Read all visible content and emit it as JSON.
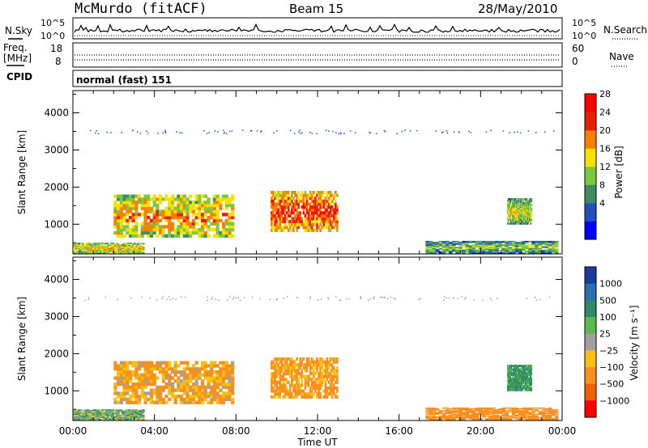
{
  "header": {
    "station": "McMurdo (fitACF)",
    "beam": "Beam 15",
    "date": "28/May/2010"
  },
  "noise_panel": {
    "left_label": "N.Sky",
    "right_label": "N.Search",
    "left_ticks": [
      "10^5",
      "10^0"
    ],
    "right_ticks": [
      "10^5",
      "10^0"
    ]
  },
  "freq_panel": {
    "left_label_1": "Freq.",
    "left_label_2": "[MHz]",
    "right_label": "Nave",
    "left_ticks": [
      "18",
      "8"
    ],
    "right_ticks": [
      "60",
      "0"
    ]
  },
  "cpid_panel": {
    "label": "CPID",
    "value": "normal (fast) 151"
  },
  "time_axis": {
    "label": "Time UT",
    "ticks": [
      "00:00",
      "04:00",
      "08:00",
      "12:00",
      "16:00",
      "20:00",
      "00:00"
    ]
  },
  "power_colorbar": {
    "label": "Power [dB]",
    "ticks": [
      "28",
      "24",
      "20",
      "16",
      "12",
      "8",
      "4"
    ],
    "colors": [
      "#0000ff",
      "#2050c0",
      "#3c8c60",
      "#7cc840",
      "#f8e000",
      "#f88000",
      "#e82000",
      "#ff0000"
    ]
  },
  "velocity_colorbar": {
    "label": "Velocity [m s⁻¹]",
    "ticks": [
      "1000",
      "500",
      "100",
      "25",
      "-25",
      "-100",
      "-500",
      "-1000"
    ],
    "colors": [
      "#1a3a9c",
      "#2a70b0",
      "#2e8a66",
      "#5cb84a",
      "#a0a0a0",
      "#f8c010",
      "#f89020",
      "#f06000",
      "#ff0000"
    ]
  },
  "chart_data": [
    {
      "type": "heatmap",
      "title": "Power",
      "xlabel": "Time UT",
      "ylabel": "Slant Range [km]",
      "xlim": [
        0,
        24
      ],
      "ylim": [
        200,
        4600
      ],
      "y_ticks": [
        1000,
        2000,
        3000,
        4000
      ],
      "x_ticks": [
        "00:00",
        "04:00",
        "08:00",
        "12:00",
        "16:00",
        "20:00",
        "00:00"
      ],
      "colorbar": {
        "label": "Power [dB]",
        "ticks": [
          4,
          8,
          12,
          16,
          20,
          24,
          28
        ]
      },
      "regions": [
        {
          "t0": 2.0,
          "t1": 7.9,
          "r0": 650,
          "r1": 1800,
          "value": 22
        },
        {
          "t0": 9.7,
          "t1": 13.0,
          "r0": 800,
          "r1": 1900,
          "value": 26
        },
        {
          "t0": 21.3,
          "t1": 22.5,
          "r0": 1000,
          "r1": 1700,
          "value": 18
        },
        {
          "t0": 17.3,
          "t1": 23.8,
          "r0": 220,
          "r1": 550,
          "value": 15
        },
        {
          "t0": 0.0,
          "t1": 3.5,
          "r0": 220,
          "r1": 500,
          "value": 20
        }
      ]
    },
    {
      "type": "heatmap",
      "title": "Velocity",
      "xlabel": "Time UT",
      "ylabel": "Slant Range [km]",
      "xlim": [
        0,
        24
      ],
      "ylim": [
        200,
        4600
      ],
      "y_ticks": [
        1000,
        2000,
        3000,
        4000
      ],
      "x_ticks": [
        "00:00",
        "04:00",
        "08:00",
        "12:00",
        "16:00",
        "20:00",
        "00:00"
      ],
      "colorbar": {
        "label": "Velocity [m s⁻¹]",
        "ticks": [
          -1000,
          -500,
          -100,
          -25,
          25,
          100,
          500,
          1000
        ]
      },
      "regions": [
        {
          "t0": 2.0,
          "t1": 7.9,
          "r0": 650,
          "r1": 1800,
          "value": -120
        },
        {
          "t0": 9.7,
          "t1": 13.0,
          "r0": 800,
          "r1": 1900,
          "value": -150
        },
        {
          "t0": 21.3,
          "t1": 22.5,
          "r0": 1000,
          "r1": 1700,
          "value": 150
        },
        {
          "t0": 17.3,
          "t1": 23.8,
          "r0": 220,
          "r1": 550,
          "value": -300
        },
        {
          "t0": 0.0,
          "t1": 3.5,
          "r0": 220,
          "r1": 500,
          "value": 60
        }
      ]
    }
  ]
}
